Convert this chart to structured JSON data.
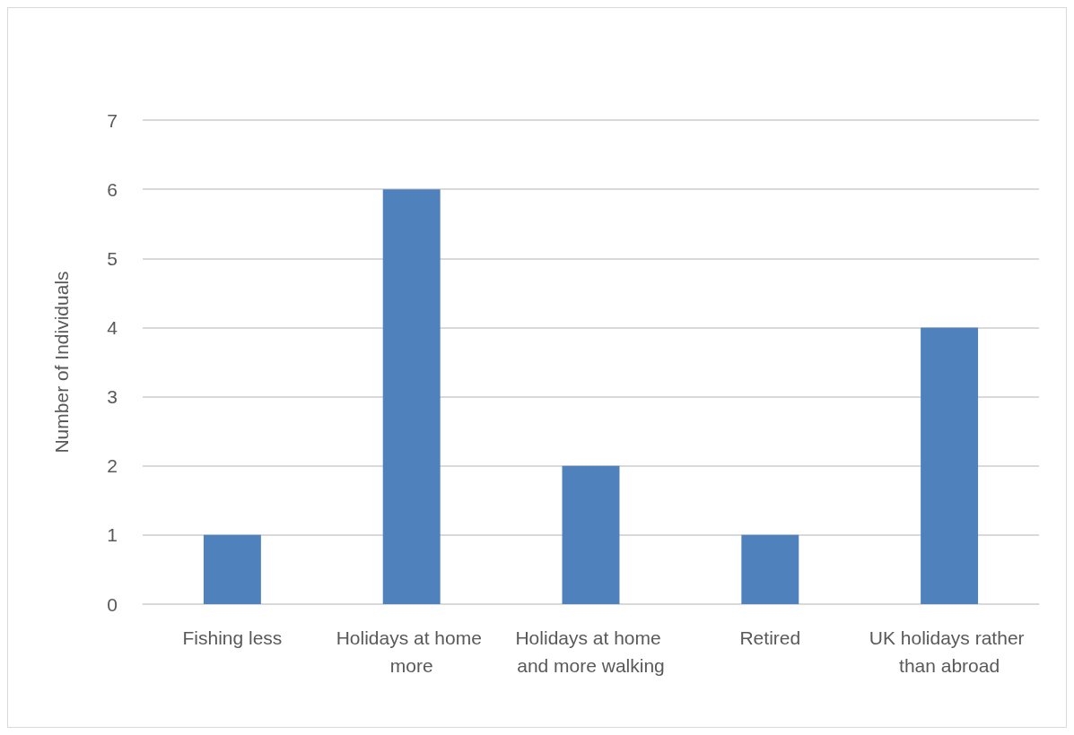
{
  "chart_data": {
    "type": "bar",
    "ylabel": "Number of Individuals",
    "categories": [
      "Fishing less",
      "Holidays at home more",
      "Holidays at home and more walking",
      "Retired",
      "UK holidays rather than abroad"
    ],
    "values": [
      1,
      6,
      2,
      1,
      4
    ],
    "color": "#4f81bd",
    "ylim": [
      0,
      7
    ],
    "yticks": [
      0,
      1,
      2,
      3,
      4,
      5,
      6,
      7
    ],
    "grid": "y"
  }
}
